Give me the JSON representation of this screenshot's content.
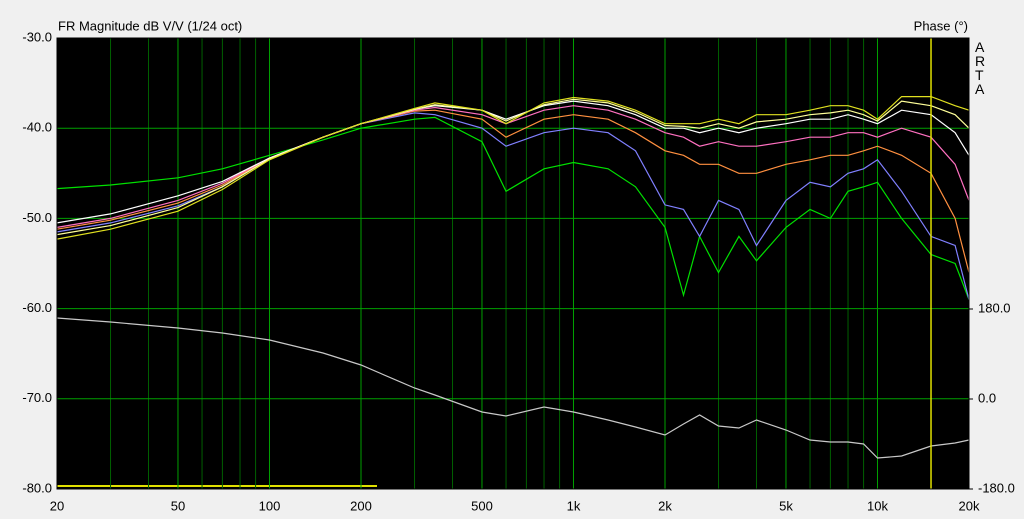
{
  "chart_data": {
    "type": "line",
    "title": "FR Magnitude dB V/V (1/24 oct)",
    "y2_title": "Phase (°)",
    "watermark": "ARTA",
    "log_x": true,
    "grid": true,
    "x": [
      20,
      30,
      50,
      70,
      100,
      150,
      200,
      300,
      350,
      500,
      600,
      800,
      1000,
      1300,
      1600,
      2000,
      2300,
      2600,
      3000,
      3500,
      4000,
      5000,
      6000,
      7000,
      8000,
      9000,
      10000,
      12000,
      15000,
      18000,
      20000
    ],
    "xlim": [
      20,
      20000
    ],
    "xticks": [
      20,
      50,
      100,
      200,
      500,
      {
        "value": 1000,
        "label": "1k"
      },
      {
        "value": 2000,
        "label": "2k"
      },
      {
        "value": 5000,
        "label": "5k"
      },
      {
        "value": 10000,
        "label": "10k"
      },
      {
        "value": 20000,
        "label": "20k"
      }
    ],
    "x_minor_gridlines": [
      30,
      40,
      60,
      70,
      80,
      90,
      300,
      400,
      600,
      700,
      800,
      900,
      3000,
      4000,
      6000,
      7000,
      8000,
      9000
    ],
    "ylim": [
      -80,
      -30
    ],
    "yticks": [
      {
        "value": -30,
        "label": "-30.0"
      },
      {
        "value": -40,
        "label": "-40.0"
      },
      {
        "value": -50,
        "label": "-50.0"
      },
      {
        "value": -60,
        "label": "-60.0"
      },
      {
        "value": -70,
        "label": "-70.0"
      },
      {
        "value": -80,
        "label": "-80.0"
      }
    ],
    "y2lim": [
      -180,
      722
    ],
    "y2ticks": [
      {
        "value": 180,
        "label": "180.0"
      },
      {
        "value": 0,
        "label": "0.0"
      },
      {
        "value": -180,
        "label": "-180.0"
      }
    ],
    "cursor_x": 15000,
    "series": [
      {
        "color": "#00e000",
        "values": [
          -46.7,
          -46.3,
          -45.5,
          -44.5,
          -43,
          -41.3,
          -40,
          -39,
          -38.8,
          -41.5,
          -47,
          -44.5,
          -43.8,
          -44.5,
          -46.5,
          -51,
          -58.5,
          -52,
          -56,
          -52,
          -54.7,
          -51,
          -49,
          -50,
          -47,
          -46.5,
          -46,
          -50,
          -54,
          -55,
          -59
        ]
      },
      {
        "color": "#8080ff",
        "values": [
          -51.5,
          -50.5,
          -48.6,
          -46.5,
          -43.4,
          -41,
          -39.5,
          -38.3,
          -38.5,
          -40,
          -42,
          -40.5,
          -40,
          -40.5,
          -42.5,
          -48.5,
          -49,
          -52,
          -48,
          -49,
          -53,
          -48,
          -46,
          -46.5,
          -45,
          -44.5,
          -43.5,
          -47,
          -52,
          -53,
          -59
        ]
      },
      {
        "color": "#ff9040",
        "values": [
          -51.2,
          -50.2,
          -48.3,
          -46.3,
          -43.3,
          -41,
          -39.5,
          -38.1,
          -38,
          -39,
          -41,
          -39,
          -38.5,
          -39,
          -40.5,
          -42.5,
          -43,
          -44,
          -44,
          -45,
          -45,
          -44,
          -43.5,
          -43,
          -43,
          -42.5,
          -42,
          -43,
          -45,
          -50,
          -56
        ]
      },
      {
        "color": "#ff70c0",
        "values": [
          -51,
          -50,
          -48,
          -46.1,
          -43.3,
          -41,
          -39.5,
          -38,
          -37.7,
          -38.5,
          -39.5,
          -38,
          -37.5,
          -38,
          -39,
          -40.5,
          -41,
          -42,
          -41.5,
          -42,
          -42,
          -41.5,
          -41,
          -41,
          -40.5,
          -40.5,
          -41,
          -40,
          -41,
          -44,
          -48
        ]
      },
      {
        "color": "#ffffff",
        "values": [
          -50.5,
          -49.5,
          -47.5,
          -45.9,
          -43.3,
          -41,
          -39.5,
          -37.9,
          -37.5,
          -38,
          -39,
          -37.5,
          -37,
          -37.5,
          -38.5,
          -40,
          -40,
          -40.5,
          -40,
          -40.5,
          -40,
          -39.5,
          -39,
          -39,
          -38.5,
          -39,
          -39.5,
          -38,
          -38.5,
          -40.5,
          -43
        ]
      },
      {
        "color": "#ffff99",
        "values": [
          -51.8,
          -50.8,
          -48.8,
          -46.5,
          -43.4,
          -41,
          -39.5,
          -37.9,
          -37.4,
          -38,
          -39.2,
          -37.4,
          -36.8,
          -37.2,
          -38.2,
          -39.7,
          -39.8,
          -40,
          -39.5,
          -40,
          -39.3,
          -39,
          -38.5,
          -38.3,
          -38,
          -38.5,
          -39.2,
          -37,
          -37.5,
          -38.5,
          -40
        ]
      },
      {
        "color": "#e0e020",
        "values": [
          -52.3,
          -51.2,
          -49.2,
          -46.8,
          -43.5,
          -41,
          -39.5,
          -37.8,
          -37.2,
          -38,
          -39.5,
          -37.2,
          -36.6,
          -37,
          -38,
          -39.5,
          -39.5,
          -39.5,
          -39,
          -39.5,
          -38.5,
          -38.5,
          -38,
          -37.5,
          -37.5,
          -38,
          -39,
          -36.5,
          -36.5,
          -37.5,
          -38
        ]
      },
      {
        "color": "#c8c8c8",
        "axis": "y2",
        "values": [
          162,
          154,
          142,
          132,
          118,
          92,
          68,
          22,
          8,
          -26,
          -34,
          -16,
          -26,
          -42,
          -56,
          -72,
          -50,
          -32,
          -54,
          -58,
          -42,
          -62,
          -82,
          -86,
          -86,
          -90,
          -118,
          -114,
          -94,
          -88,
          -82
        ]
      }
    ]
  }
}
